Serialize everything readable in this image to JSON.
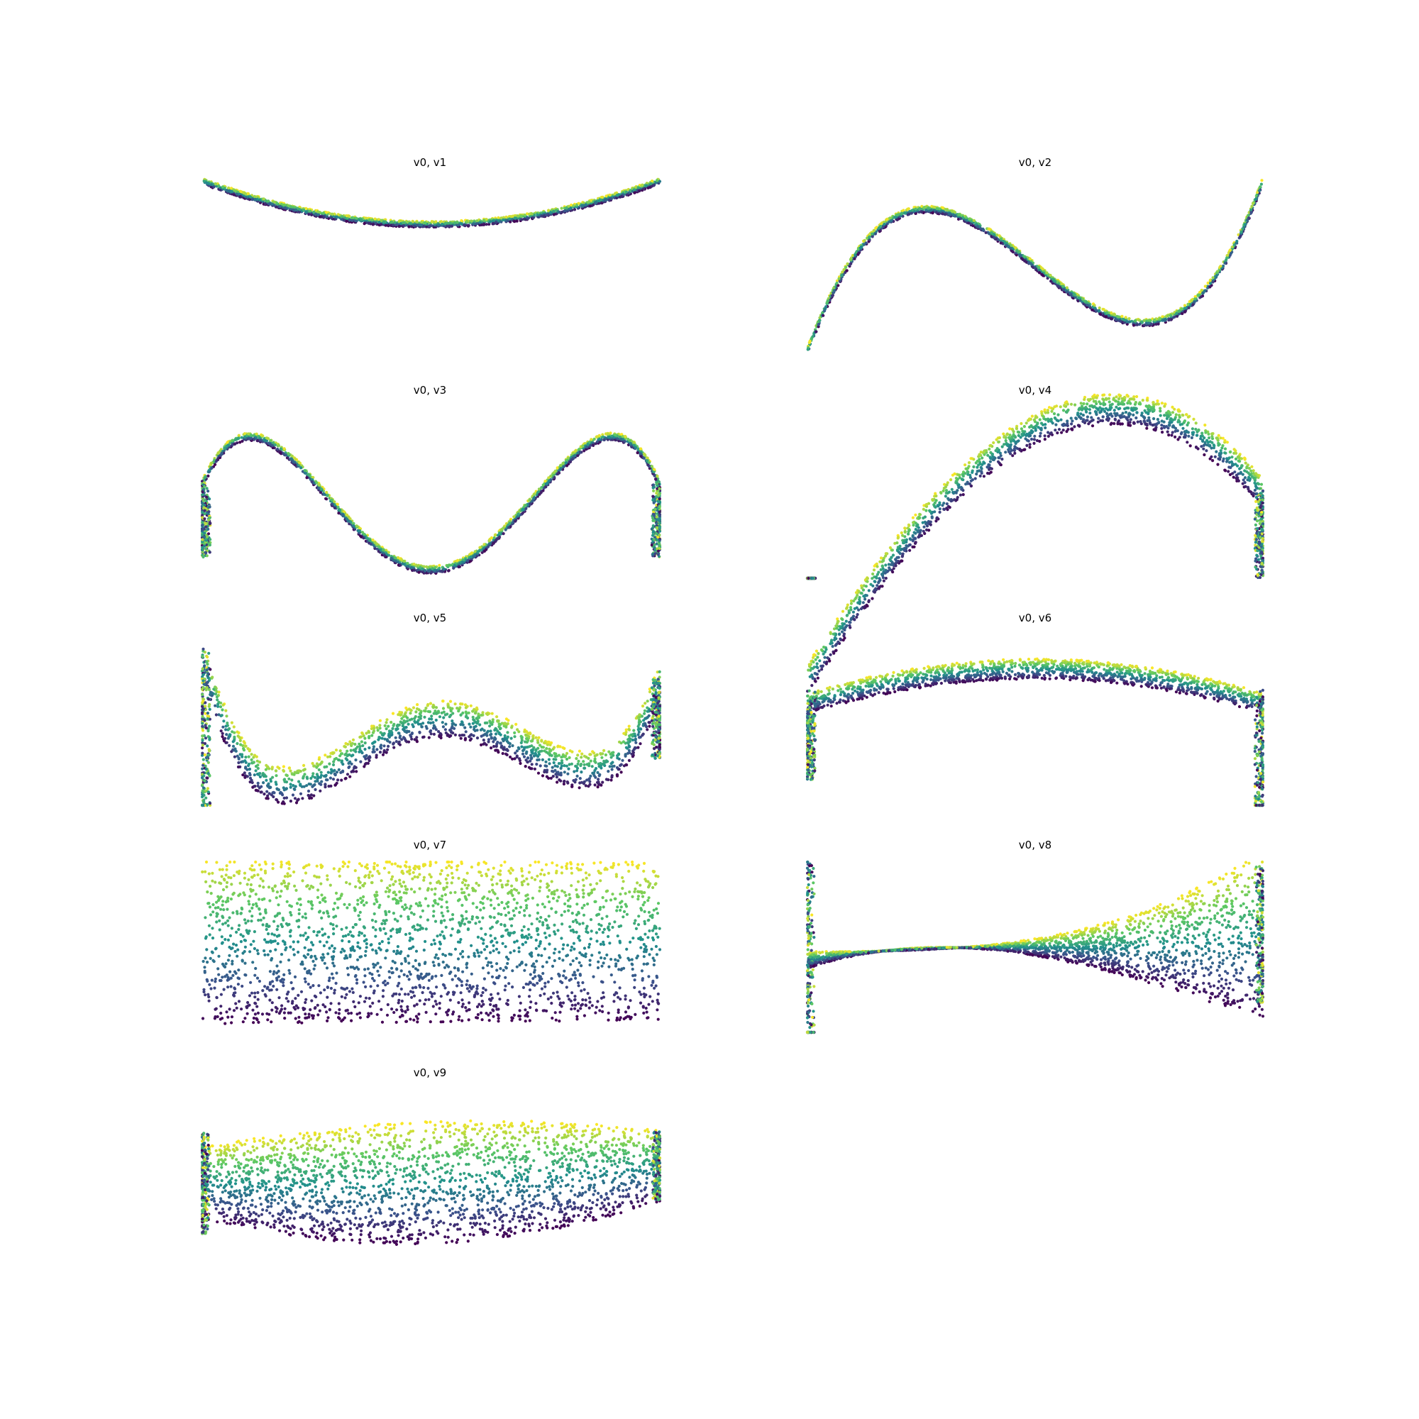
{
  "figure": {
    "background": "#ffffff",
    "colormap": "viridis",
    "colormap_stops": [
      "#440154",
      "#3b528b",
      "#21918c",
      "#5ec962",
      "#fde725"
    ],
    "axes_visible": false
  },
  "chart_data": [
    {
      "type": "scatter",
      "title": "v0, v1",
      "xlabel": "",
      "ylabel": "",
      "xlim": [
        -1,
        1
      ],
      "ylim": [
        -1,
        1
      ],
      "grid": false,
      "shape": "curve",
      "coef": [
        0.49,
        0,
        0.51
      ],
      "spread": 0.035,
      "edge_drop": [
        0,
        0
      ],
      "edge_spread": 0.1
    },
    {
      "type": "scatter",
      "title": "v0, v2",
      "xlabel": "",
      "ylabel": "",
      "xlim": [
        -1,
        1
      ],
      "ylim": [
        -1,
        1
      ],
      "grid": false,
      "shape": "curve",
      "coef": [
        0,
        -2.1,
        0,
        3.1
      ],
      "spread": 0.04,
      "edge_drop": [
        0,
        0
      ],
      "edge_spread": 0.12
    },
    {
      "type": "scatter",
      "title": "v0, v3",
      "xlabel": "",
      "ylabel": "",
      "xlim": [
        -1,
        1
      ],
      "ylim": [
        -1,
        1
      ],
      "grid": false,
      "shape": "curve",
      "coef": [
        -0.9,
        0,
        5.0,
        0,
        -4.0
      ],
      "spread": 0.045,
      "edge_drop": [
        0.85,
        0.85
      ],
      "edge_spread": 0.12
    },
    {
      "type": "scatter",
      "title": "v0, v4",
      "xlabel": "",
      "ylabel": "",
      "xlim": [
        -1,
        1
      ],
      "ylim": [
        -1,
        1
      ],
      "grid": false,
      "shape": "curve",
      "coef": [
        0.75,
        1.35,
        -1.85,
        -0.25
      ],
      "spread": 0.18,
      "edge_drop": [
        1.75,
        1.0
      ],
      "edge_spread": 0.2
    },
    {
      "type": "scatter",
      "title": "v0, v5",
      "xlabel": "",
      "ylabel": "",
      "xlim": [
        -1,
        1
      ],
      "ylim": [
        -1,
        1
      ],
      "grid": false,
      "shape": "curve",
      "coef": [
        0.0,
        0.35,
        -3.2,
        -0.5,
        3.8
      ],
      "spread": 0.22,
      "edge_drop": [
        1.9,
        0.9
      ],
      "edge_spread": 0.3
    },
    {
      "type": "scatter",
      "title": "v0, v6",
      "xlabel": "",
      "ylabel": "",
      "xlim": [
        -1,
        1
      ],
      "ylim": [
        -1,
        1
      ],
      "grid": false,
      "shape": "curve",
      "coef": [
        0.6,
        0.0,
        -0.4
      ],
      "spread": 0.12,
      "edge_drop": [
        0.9,
        1.5
      ],
      "edge_spread": 0.35
    },
    {
      "type": "scatter",
      "title": "v0, v7",
      "xlabel": "",
      "ylabel": "",
      "xlim": [
        -1,
        1
      ],
      "ylim": [
        -1,
        1
      ],
      "grid": false,
      "shape": "fan",
      "center": [
        0.07,
        0.0
      ],
      "halfwidth": [
        0.95,
        -0.02
      ],
      "edge_drop": [
        0,
        0
      ],
      "edge_spread": 0.3
    },
    {
      "type": "scatter",
      "title": "v0, v8",
      "xlabel": "",
      "ylabel": "",
      "xlim": [
        -1,
        1
      ],
      "ylim": [
        -1,
        1
      ],
      "grid": false,
      "shape": "fan",
      "center": [
        0.0,
        0.0,
        0.0,
        0.15
      ],
      "halfwidth": [
        0.1,
        0.45,
        0.45
      ],
      "edge_drop": [
        1.2,
        0.8
      ],
      "edge_spread": 0.3
    },
    {
      "type": "scatter",
      "title": "v0, v9",
      "xlabel": "",
      "ylabel": "",
      "xlim": [
        -1,
        1
      ],
      "ylim": [
        -1,
        1
      ],
      "grid": false,
      "shape": "fan",
      "center": [
        -0.1,
        0.1,
        0.1
      ],
      "halfwidth": [
        0.72,
        0.0,
        -0.3
      ],
      "edge_drop": [
        0.6,
        0.4
      ],
      "edge_spread": 0.3
    }
  ]
}
